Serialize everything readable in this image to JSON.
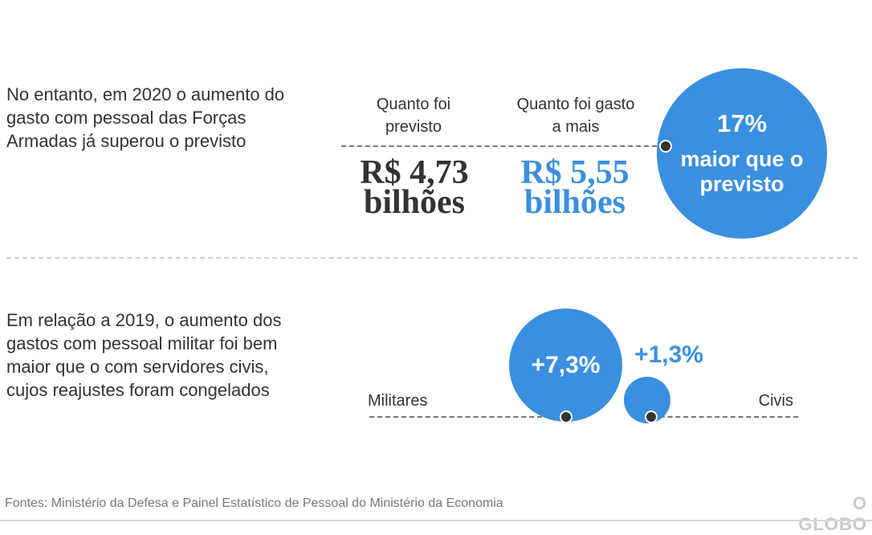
{
  "section1": {
    "text": "No entanto, em 2020 o aumento do gasto com pessoal das Forças Armadas já superou o previsto",
    "forecast_label": "Quanto foi previsto",
    "spent_label": "Quanto foi gasto a mais",
    "forecast_value": "R$ 4,73 bilhões",
    "spent_value": "R$ 5,55 bilhões",
    "bubble_pct": "17%",
    "bubble_text": "maior que o previsto"
  },
  "section2": {
    "text": "Em relação a 2019, o aumento dos gastos com pessoal militar foi bem maior que o com servidores civis, cujos reajustes foram congelados",
    "military_label": "Militares",
    "civil_label": "Civis",
    "military_value": "+7,3%",
    "civil_value": "+1,3%"
  },
  "footer": {
    "sources": "Fontes: Ministério da Defesa e Painel Estatístico de Pessoal do Ministério da Economia",
    "logo": "O GLOBO"
  },
  "colors": {
    "accent": "#3a8fe0",
    "dark": "#333333"
  }
}
